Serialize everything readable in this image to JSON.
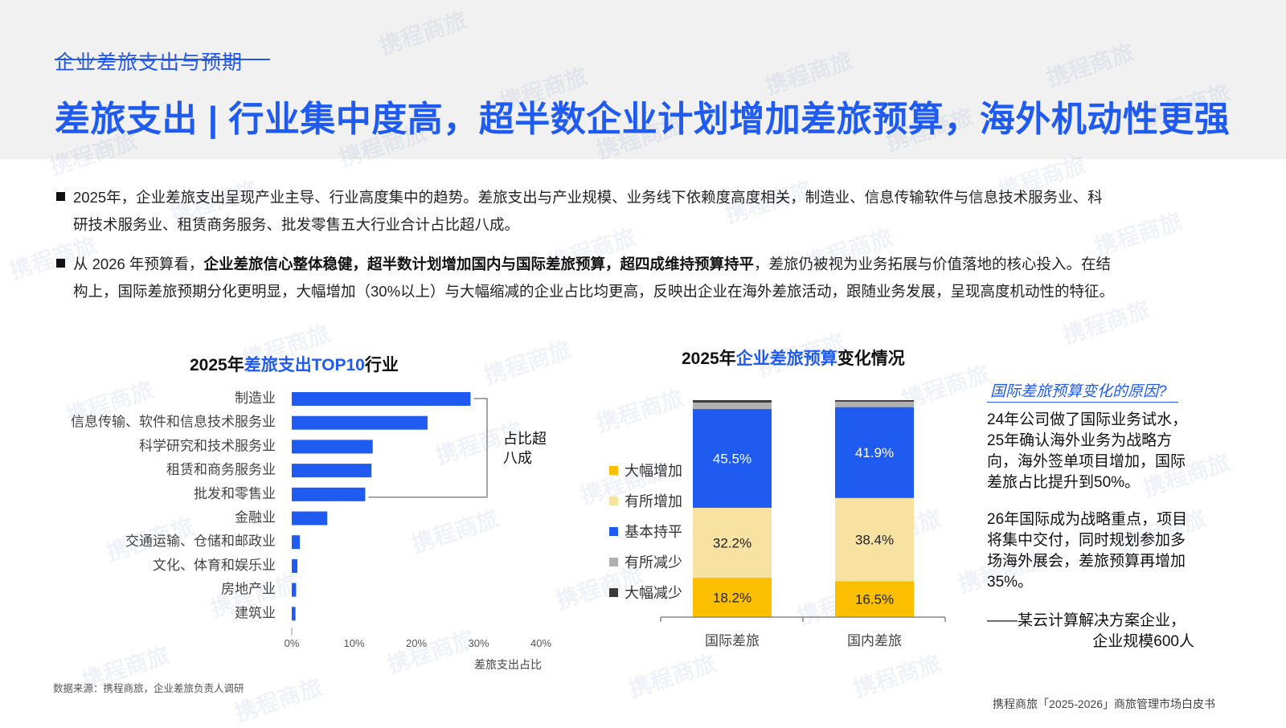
{
  "header": {
    "section_label": "企业差旅支出与预期",
    "title": "差旅支出 | 行业集中度高，超半数企业计划增加差旅预算，海外机动性更强"
  },
  "bullets": [
    {
      "line1": "2025年，企业差旅支出呈现产业主导、行业高度集中的趋势。差旅支出与产业规模、业务线下依赖度高度相关，制造业、信息传输软件与信息技术服务业、科",
      "line2": "研技术服务业、租赁商务服务、批发零售五大行业合计占比超八成。"
    },
    {
      "p1": "从 2026 年预算看，",
      "b1": "企业差旅信心整体稳健，超半数计划增加国内与国际差旅预算，超四成维持预算持平",
      "p2": "，差旅仍被视为业务拓展与价值落地的核心投入。在结",
      "line2": "构上，国际差旅预期分化更明显，大幅增加（30%以上）与大幅缩减的企业占比均更高，反映出企业在海外差旅活动，跟随业务发展，呈现高度机动性的特征。"
    }
  ],
  "left_chart": {
    "title_prefix": "2025年",
    "title_highlight": "差旅支出TOP10",
    "title_suffix": "行业",
    "bracket_label_line1": "占比超",
    "bracket_label_line2": "八成",
    "bar_color": "#1f5bf0"
  },
  "right_chart": {
    "title_prefix": "2025年",
    "title_highlight": "企业差旅预算",
    "title_suffix": "变化情况"
  },
  "chart_data": [
    {
      "type": "bar",
      "orientation": "horizontal",
      "categories": [
        "制造业",
        "信息传输、软件和信息技术服务业",
        "科学研究和技术服务业",
        "租赁和商务服务业",
        "批发和零售业",
        "金融业",
        "交通运输、仓储和邮政业",
        "文化、体育和娱乐业",
        "房地产业",
        "建筑业"
      ],
      "values": [
        28.7,
        21.8,
        13.0,
        12.8,
        11.8,
        5.7,
        1.3,
        0.9,
        0.7,
        0.6
      ],
      "xlabel": "差旅支出占比",
      "xlim": [
        0,
        40
      ],
      "xticks": [
        "0%",
        "10%",
        "20%",
        "30%",
        "40%"
      ],
      "grid": false
    },
    {
      "type": "bar",
      "stacked": true,
      "categories": [
        "国际差旅",
        "国内差旅"
      ],
      "series": [
        {
          "name": "大幅增加",
          "color": "#fbbf00",
          "values": [
            18.2,
            16.5
          ]
        },
        {
          "name": "有所增加",
          "color": "#f7e2a2",
          "values": [
            32.2,
            38.4
          ]
        },
        {
          "name": "基本持平",
          "color": "#1f5bf0",
          "values": [
            45.5,
            41.9
          ]
        },
        {
          "name": "有所减少",
          "color": "#b0b0b0",
          "values": [
            3.0,
            2.5
          ]
        },
        {
          "name": "大幅减少",
          "color": "#3a3a3a",
          "values": [
            1.1,
            0.7
          ]
        }
      ],
      "data_labels": {
        "大幅增加": [
          "18.2%",
          "16.5%"
        ],
        "有所增加": [
          "32.2%",
          "38.4%"
        ],
        "基本持平": [
          "45.5%",
          "41.9%"
        ]
      },
      "ylim": [
        0,
        100
      ],
      "legend_position": "left"
    }
  ],
  "side_note": {
    "question": "国际差旅预算变化的原因?",
    "para1": "24年公司做了国际业务试水，25年确认海外业务为战略方向，海外签单项目增加，国际差旅占比提升到50%。",
    "para2": "26年国际成为战略重点，项目将集中交付，同时规划参加多场海外展会，差旅预算再增加35%。",
    "quote_line1": "——某云计算解决方案企业，",
    "quote_line2": "企业规模600人"
  },
  "source_note": "数据来源：携程商旅，企业差旅负责人调研",
  "footer_note": "携程商旅「2025-2026」商旅管理市场白皮书",
  "watermark_text": "携程商旅"
}
